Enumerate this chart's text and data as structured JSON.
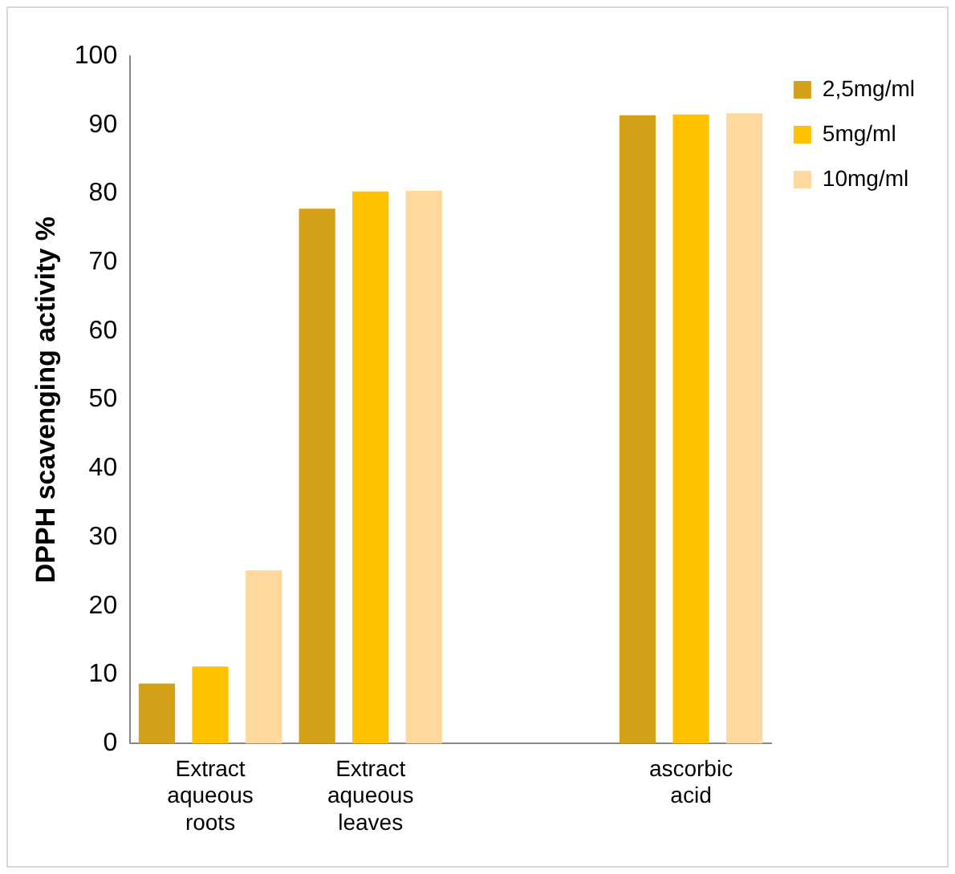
{
  "chart_data": {
    "type": "bar",
    "ylabel": "DPPH scavenging activity %",
    "categories": [
      "Extract aqueous roots",
      "Extract aqueous leaves",
      null,
      "ascorbic acid"
    ],
    "series": [
      {
        "name": "2,5mg/ml",
        "color": "#d4a017",
        "values": [
          8.7,
          77.8,
          null,
          91.4
        ]
      },
      {
        "name": "5mg/ml",
        "color": "#ffc000",
        "values": [
          11.2,
          80.3,
          null,
          91.5
        ]
      },
      {
        "name": "10mg/ml",
        "color": "#ffd8a0",
        "values": [
          25.2,
          80.4,
          null,
          91.7
        ]
      }
    ],
    "ylim": [
      0,
      100
    ],
    "yticks": [
      0,
      10,
      20,
      30,
      40,
      50,
      60,
      70,
      80,
      90,
      100
    ],
    "grid": false,
    "legend": "top right"
  }
}
